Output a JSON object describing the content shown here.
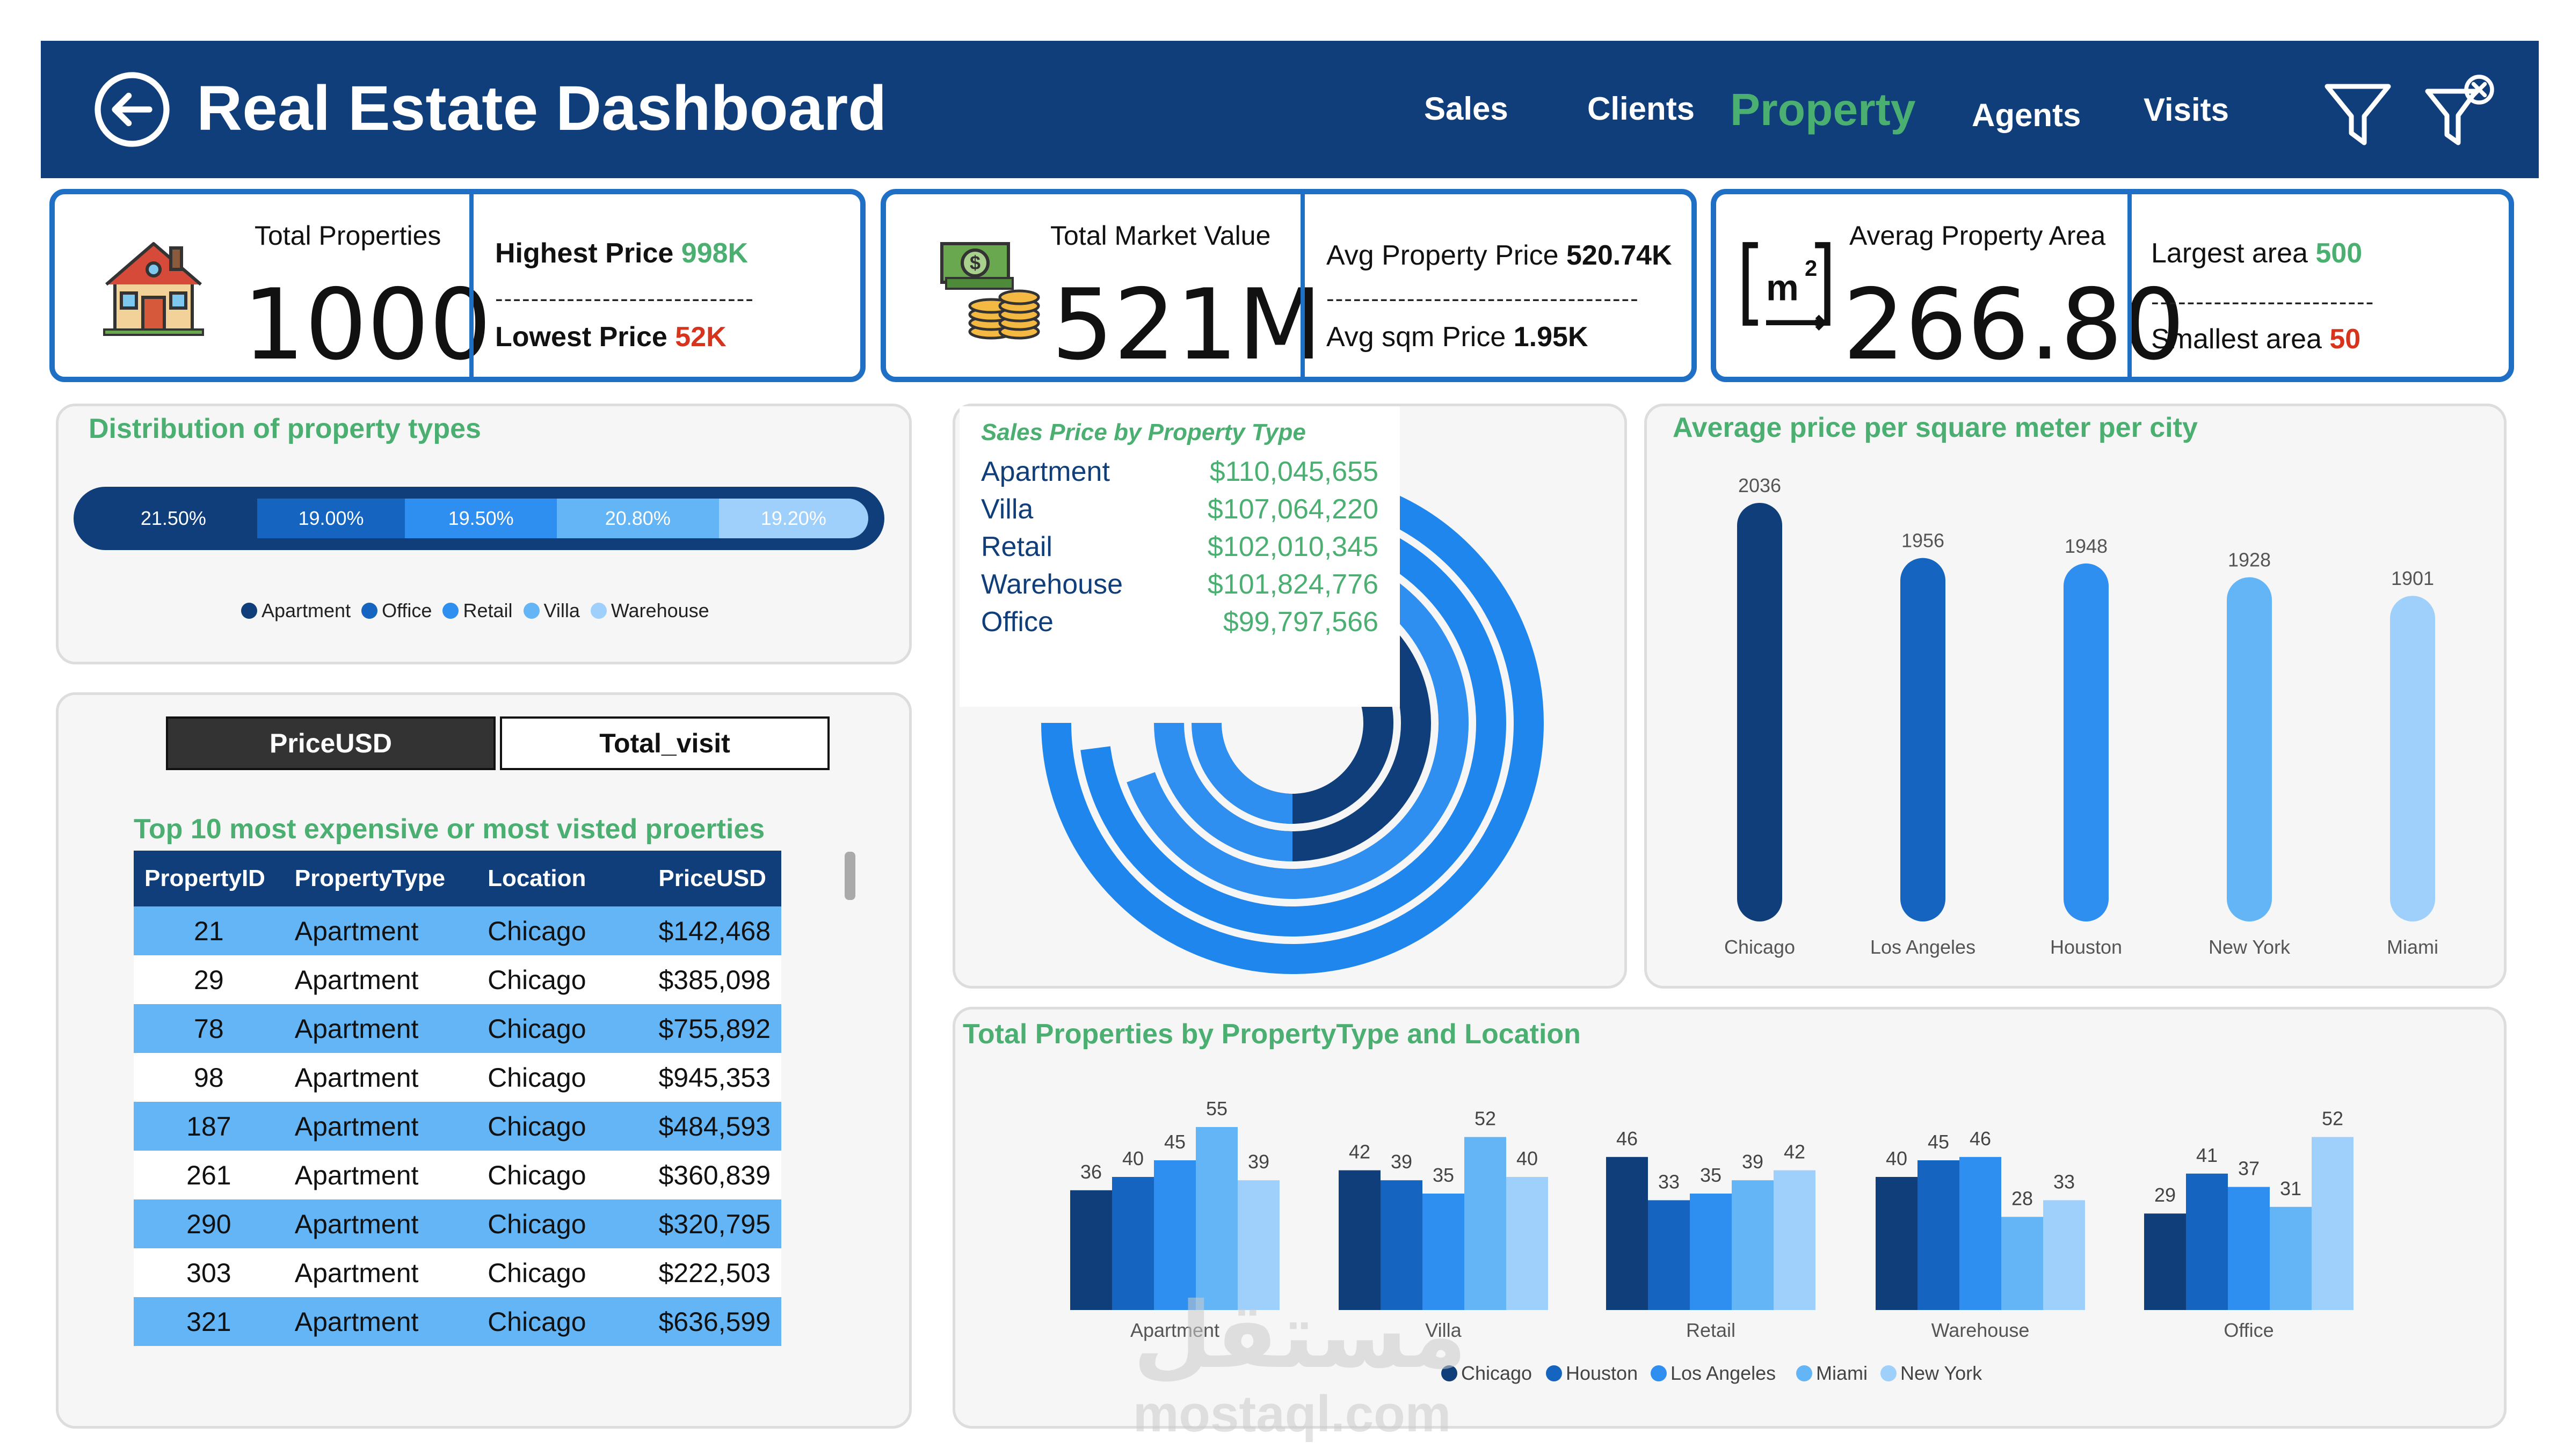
{
  "header": {
    "title": "Real Estate Dashboard",
    "nav": [
      {
        "label": "Sales",
        "active": false
      },
      {
        "label": "Clients",
        "active": false
      },
      {
        "label": "Property",
        "active": true
      },
      {
        "label": "Agents",
        "active": false
      },
      {
        "label": "Visits",
        "active": false
      }
    ],
    "icons": [
      "back-arrow-icon",
      "filter-icon",
      "clear-filter-icon"
    ]
  },
  "kpi1": {
    "icon": "house-icon",
    "label": "Total Properties",
    "value": "1000",
    "highest_label": "Highest Price",
    "highest_value": "998K",
    "dashes": "-----------------------------",
    "lowest_label": "Lowest Price",
    "lowest_value": "52K"
  },
  "kpi2": {
    "icon": "money-icon",
    "label": "Total Market Value",
    "value": "521M",
    "avg_price_label": "Avg Property Price",
    "avg_price_value": "520.74K",
    "dashes": "-----------------------------------",
    "avg_sqm_label": "Avg sqm Price",
    "avg_sqm_value": "1.95K"
  },
  "kpi3": {
    "icon": "area-m2-icon",
    "label": "Averag Property Area",
    "value": "266.80",
    "largest_label": "Largest area",
    "largest_value": "500",
    "dashes": "-------------------------",
    "smallest_label": "Smallest area",
    "smallest_value": "50"
  },
  "distribution": {
    "title": "Distribution of property types",
    "segments": [
      {
        "name": "Apartment",
        "pct": 21.5,
        "label": "21.50%",
        "color": "#0f3e7a"
      },
      {
        "name": "Office",
        "pct": 19.0,
        "label": "19.00%",
        "color": "#1565c0"
      },
      {
        "name": "Retail",
        "pct": 19.5,
        "label": "19.50%",
        "color": "#2e8ff0"
      },
      {
        "name": "Villa",
        "pct": 20.8,
        "label": "20.80%",
        "color": "#64b5f6"
      },
      {
        "name": "Warehouse",
        "pct": 19.2,
        "label": "19.20%",
        "color": "#9ed0fb"
      }
    ]
  },
  "toggle": {
    "price_label": "PriceUSD",
    "visit_label": "Total_visit"
  },
  "top_table": {
    "title": "Top 10 most expensive or most visted proerties",
    "columns": [
      "PropertyID",
      "PropertyType",
      "Location",
      "PriceUSD"
    ],
    "rows": [
      [
        "21",
        "Apartment",
        "Chicago",
        "$142,468"
      ],
      [
        "29",
        "Apartment",
        "Chicago",
        "$385,098"
      ],
      [
        "78",
        "Apartment",
        "Chicago",
        "$755,892"
      ],
      [
        "98",
        "Apartment",
        "Chicago",
        "$945,353"
      ],
      [
        "187",
        "Apartment",
        "Chicago",
        "$484,593"
      ],
      [
        "261",
        "Apartment",
        "Chicago",
        "$360,839"
      ],
      [
        "290",
        "Apartment",
        "Chicago",
        "$320,795"
      ],
      [
        "303",
        "Apartment",
        "Chicago",
        "$222,503"
      ],
      [
        "321",
        "Apartment",
        "Chicago",
        "$636,599"
      ]
    ]
  },
  "sales_tooltip": {
    "title": "Sales Price by Property Type",
    "rows": [
      {
        "name": "Apartment",
        "value": "$110,045,655"
      },
      {
        "name": "Villa",
        "value": "$107,064,220"
      },
      {
        "name": "Retail",
        "value": "$102,010,345"
      },
      {
        "name": "Warehouse",
        "value": "$101,824,776"
      },
      {
        "name": "Office",
        "value": "$99,797,566"
      }
    ]
  },
  "chart_data": [
    {
      "type": "radial-bar",
      "title": "Sales Price by Property Type",
      "categories": [
        "Apartment",
        "Villa",
        "Retail",
        "Warehouse",
        "Office"
      ],
      "values": [
        110045655,
        107064220,
        102010345,
        101824776,
        99797566
      ]
    },
    {
      "type": "bar",
      "title": "Average price per square meter per city",
      "categories": [
        "Chicago",
        "Los Angeles",
        "Houston",
        "New York",
        "Miami"
      ],
      "values": [
        2036,
        1956,
        1948,
        1928,
        1901
      ],
      "colors": [
        "#0f3e7a",
        "#1565c0",
        "#2e8ff0",
        "#64b5f6",
        "#9ed0fb"
      ]
    },
    {
      "type": "bar",
      "title": "Total Properties by PropertyType and Location",
      "categories": [
        "Apartment",
        "Villa",
        "Retail",
        "Warehouse",
        "Office"
      ],
      "series": [
        {
          "name": "Chicago",
          "values": [
            36,
            42,
            46,
            40,
            29
          ],
          "color": "#0f3e7a"
        },
        {
          "name": "Houston",
          "values": [
            40,
            39,
            33,
            45,
            41
          ],
          "color": "#1565c0"
        },
        {
          "name": "Los Angeles",
          "values": [
            45,
            35,
            35,
            46,
            37
          ],
          "color": "#2e8ff0"
        },
        {
          "name": "Miami",
          "values": [
            55,
            52,
            39,
            28,
            31
          ],
          "color": "#64b5f6"
        },
        {
          "name": "New York",
          "values": [
            39,
            40,
            42,
            33,
            52
          ],
          "color": "#9ed0fb"
        }
      ],
      "legend": "bottom"
    }
  ],
  "watermark": {
    "arabic": "مستقل",
    "latin": "mostaql.com"
  }
}
